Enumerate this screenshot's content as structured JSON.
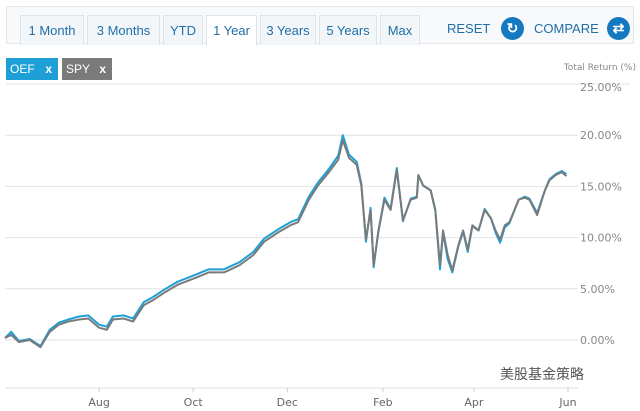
{
  "tabs": [
    {
      "label": "1 Month"
    },
    {
      "label": "3 Months"
    },
    {
      "label": "YTD"
    },
    {
      "label": "1 Year",
      "active": true
    },
    {
      "label": "3 Years"
    },
    {
      "label": "5 Years"
    },
    {
      "label": "Max"
    }
  ],
  "actions": {
    "reset": "RESET",
    "reset_icon": "refresh-icon",
    "compare": "COMPARE",
    "compare_icon": "swap-arrows-icon"
  },
  "tags": [
    {
      "label": "OEF",
      "remove": "x",
      "color": "#1ea0d7"
    },
    {
      "label": "SPY",
      "remove": "x",
      "color": "#7a7a7a"
    }
  ],
  "watermark": "美股基金策略",
  "chart_data": {
    "type": "line",
    "ylabel": "Total Return (%)",
    "ylim": [
      -0.5,
      25
    ],
    "yticks": [
      "0.00%",
      "5.00%",
      "10.00%",
      "15.00%",
      "20.00%",
      "25.00%"
    ],
    "xticks": [
      "Aug",
      "Oct",
      "Dec",
      "Feb",
      "Apr",
      "Jun"
    ],
    "grid": true,
    "x": [
      "Jun 1",
      "Jun 5",
      "Jun 10",
      "Jun 17",
      "Jun 24",
      "Jun 30",
      "Jul 6",
      "Jul 12",
      "Jul 19",
      "Jul 25",
      "Aug 1",
      "Aug 6",
      "Aug 10",
      "Aug 17",
      "Aug 23",
      "Aug 30",
      "Sep 5",
      "Sep 12",
      "Sep 21",
      "Oct 3",
      "Oct 11",
      "Oct 21",
      "Oct 31",
      "Nov 9",
      "Nov 16",
      "Nov 25",
      "Dec 3",
      "Dec 8",
      "Dec 15",
      "Dec 21",
      "Dec 28",
      "Jan 3",
      "Jan 6",
      "Jan 10",
      "Jan 15",
      "Jan 18",
      "Jan 21",
      "Jan 24",
      "Jan 26",
      "Jan 29",
      "Feb 2",
      "Feb 6",
      "Feb 10",
      "Feb 14",
      "Feb 19",
      "Feb 23",
      "Feb 24",
      "Feb 27",
      "Mar 4",
      "Mar 7",
      "Mar 10",
      "Mar 12",
      "Mar 15",
      "Mar 18",
      "Mar 22",
      "Mar 25",
      "Mar 28",
      "Mar 31",
      "Apr 4",
      "Apr 8",
      "Apr 12",
      "Apr 15",
      "Apr 18",
      "Apr 21",
      "Apr 24",
      "Apr 30",
      "May 4",
      "May 7",
      "May 12",
      "May 17",
      "May 20",
      "May 24",
      "May 28",
      "May 31"
    ],
    "series": [
      {
        "name": "OEF",
        "color": "#1ea0d7",
        "values": [
          0.2,
          0.8,
          -0.1,
          0.1,
          -0.6,
          1.0,
          1.7,
          2.0,
          2.3,
          2.4,
          1.5,
          1.3,
          2.3,
          2.4,
          2.1,
          3.7,
          4.2,
          4.9,
          5.7,
          6.4,
          6.9,
          6.9,
          7.6,
          8.6,
          9.9,
          10.8,
          11.5,
          11.8,
          14.0,
          15.4,
          16.7,
          18.0,
          20.0,
          18.1,
          17.4,
          15.3,
          9.6,
          12.9,
          7.1,
          10.6,
          13.9,
          12.8,
          16.8,
          11.6,
          13.8,
          14.0,
          16.1,
          15.1,
          14.6,
          12.6,
          6.9,
          10.5,
          7.9,
          6.6,
          9.2,
          10.6,
          8.6,
          11.1,
          10.7,
          12.8,
          11.9,
          10.5,
          9.5,
          11.0,
          11.4,
          13.7,
          14.0,
          13.8,
          12.4,
          14.6,
          15.7,
          16.2,
          16.5,
          16.2
        ]
      },
      {
        "name": "SPY",
        "color": "#7a7a7a",
        "values": [
          0.2,
          0.5,
          -0.2,
          0.0,
          -0.7,
          0.8,
          1.5,
          1.8,
          2.0,
          2.1,
          1.2,
          1.0,
          2.0,
          2.1,
          1.8,
          3.4,
          3.9,
          4.6,
          5.4,
          6.1,
          6.6,
          6.6,
          7.3,
          8.3,
          9.6,
          10.5,
          11.2,
          11.5,
          13.7,
          15.1,
          16.4,
          17.6,
          19.5,
          17.8,
          17.1,
          15.1,
          9.8,
          12.7,
          7.3,
          10.5,
          13.7,
          12.7,
          16.6,
          11.7,
          13.7,
          13.9,
          16.1,
          15.1,
          14.6,
          12.7,
          7.3,
          10.7,
          8.3,
          6.8,
          9.3,
          10.7,
          8.8,
          11.2,
          10.7,
          12.7,
          11.9,
          10.7,
          9.8,
          11.2,
          11.5,
          13.7,
          13.9,
          13.7,
          12.2,
          14.6,
          15.6,
          16.1,
          16.4,
          16.0
        ]
      }
    ]
  }
}
